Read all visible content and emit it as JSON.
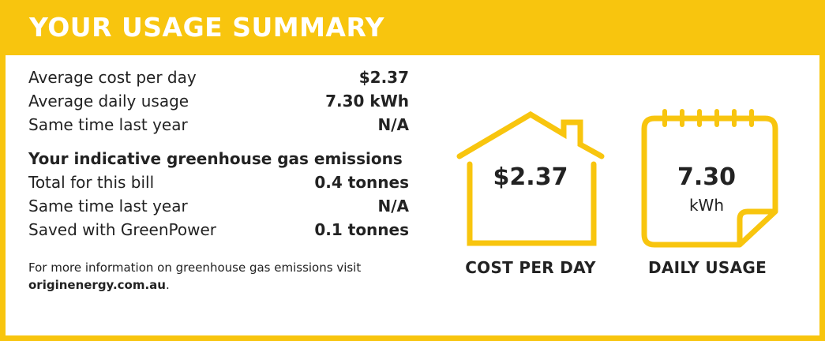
{
  "header": {
    "title": "YOUR USAGE SUMMARY"
  },
  "summary": [
    {
      "label": "Average cost per day",
      "value": "$2.37"
    },
    {
      "label": "Average daily usage",
      "value": "7.30 kWh"
    },
    {
      "label": "Same time last year",
      "value": "N/A"
    }
  ],
  "emissions": {
    "heading": "Your indicative greenhouse gas emissions",
    "rows": [
      {
        "label": "Total for this bill",
        "value": "0.4 tonnes"
      },
      {
        "label": "Same time last year",
        "value": "N/A"
      },
      {
        "label": "Saved with GreenPower",
        "value": "0.1 tonnes"
      }
    ]
  },
  "info": {
    "text": "For more information on greenhouse gas emissions visit",
    "link": "originenergy.com.au",
    "suffix": "."
  },
  "cost_tile": {
    "value": "$2.37",
    "caption": "COST PER DAY",
    "icon": "house-icon"
  },
  "usage_tile": {
    "value": "7.30",
    "unit": "kWh",
    "caption": "DAILY USAGE",
    "icon": "calendar-icon"
  },
  "colors": {
    "accent": "#F8C50E",
    "text": "#222222",
    "background": "#FFFFFF"
  }
}
